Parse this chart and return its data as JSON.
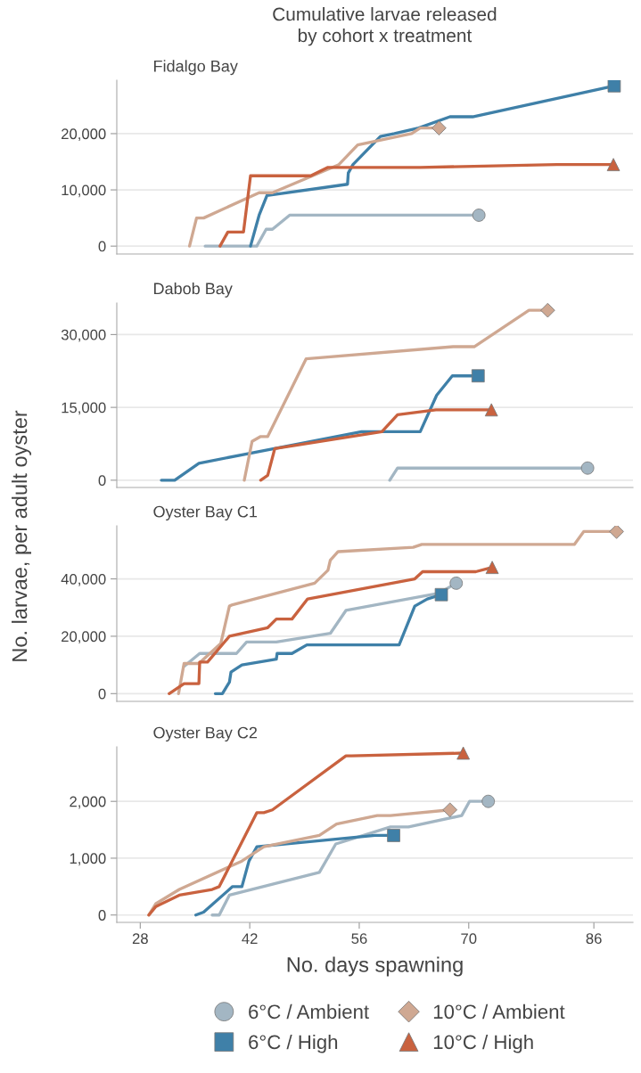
{
  "chart_data": [
    {
      "type": "line",
      "title": "Cumulative larvae released\nby cohort x treatment",
      "subtitle": "Fidalgo Bay",
      "xlim": [
        25,
        91
      ],
      "ylim": [
        -1400,
        29500
      ],
      "yticks": [
        0,
        {
          "value": 10000,
          "label": "10,000"
        },
        {
          "value": 20000,
          "label": "20,000"
        }
      ],
      "grid": "y",
      "tick_labels": "y",
      "legend": "bottom",
      "series": [
        {
          "name": "6°C / Ambient",
          "color": "#a3b6c3",
          "x": [
            36.3,
            42.9,
            44.1,
            44.9,
            47.1,
            71.3
          ],
          "values": [
            0,
            0,
            3000,
            3000,
            5500,
            5500
          ]
        },
        {
          "name": "6°C / High",
          "color": "#3f80a8",
          "x": [
            42.1,
            43.2,
            44.2,
            54.5,
            54.6,
            55.2,
            58.7,
            60.5,
            63.6,
            67.6,
            70.5,
            88.6
          ],
          "values": [
            0,
            5500,
            9000,
            11000,
            13000,
            14500,
            19500,
            20000,
            21000,
            23000,
            23000,
            28500
          ]
        },
        {
          "name": "10°C / Ambient",
          "color": "#cfa892",
          "x": [
            34.3,
            35.2,
            36.1,
            43.2,
            44.9,
            53.4,
            55.8,
            62.7,
            63.8,
            66.2
          ],
          "values": [
            0,
            5000,
            5000,
            9500,
            9500,
            14500,
            18000,
            20000,
            21000,
            21000
          ]
        },
        {
          "name": "10°C / High",
          "color": "#c9623f",
          "x": [
            38.2,
            39.2,
            41.2,
            42.1,
            49.8,
            52.0,
            63.8,
            81.3,
            88.5
          ],
          "values": [
            0,
            2500,
            2500,
            12500,
            12500,
            14000,
            14000,
            14500,
            14500
          ]
        }
      ]
    },
    {
      "type": "line",
      "subtitle": "Dabob Bay",
      "xlim": [
        25,
        91
      ],
      "ylim": [
        -1500,
        36500
      ],
      "yticks": [
        0,
        {
          "value": 15000,
          "label": "15,000"
        },
        {
          "value": 30000,
          "label": "30,000"
        }
      ],
      "grid": "y",
      "tick_labels": "y",
      "legend": "bottom",
      "series": [
        {
          "name": "6°C / Ambient",
          "color": "#a3b6c3",
          "x": [
            59.9,
            60.9,
            85.2
          ],
          "values": [
            0,
            2500,
            2500
          ]
        },
        {
          "name": "6°C / High",
          "color": "#3f80a8",
          "x": [
            30.7,
            32.4,
            35.5,
            56.3,
            63.8,
            65.9,
            67.9,
            71.2
          ],
          "values": [
            0,
            0,
            3500,
            10000,
            10000,
            17500,
            21500,
            21500
          ]
        },
        {
          "name": "10°C / Ambient",
          "color": "#cfa892",
          "x": [
            41.3,
            42.3,
            43.4,
            44.3,
            49.2,
            68.0,
            70.7,
            77.7,
            80.1
          ],
          "values": [
            0,
            8000,
            9000,
            9000,
            25000,
            27500,
            27500,
            35000,
            35000
          ]
        },
        {
          "name": "10°C / High",
          "color": "#c9623f",
          "x": [
            43.4,
            44.3,
            45.2,
            58.9,
            60.9,
            65.8,
            72.9
          ],
          "values": [
            0,
            1000,
            6500,
            10000,
            13500,
            14500,
            14500
          ]
        }
      ]
    },
    {
      "type": "line",
      "subtitle": "Oyster Bay C1",
      "ylabel": "No. larvae, per adult oyster",
      "xlim": [
        25,
        91
      ],
      "ylim": [
        -2700,
        58500
      ],
      "yticks": [
        0,
        {
          "value": 20000,
          "label": "20,000"
        },
        {
          "value": 40000,
          "label": "40,000"
        }
      ],
      "grid": "y",
      "tick_labels": "y",
      "legend": "bottom",
      "series": [
        {
          "name": "6°C / Ambient",
          "color": "#a3b6c3",
          "x": [
            33.6,
            35.6,
            40.3,
            41.6,
            45.4,
            52.3,
            54.3,
            66.2,
            68.4
          ],
          "values": [
            9500,
            14000,
            14000,
            18000,
            18000,
            21000,
            29000,
            35000,
            38500
          ]
        },
        {
          "name": "6°C / High",
          "color": "#3f80a8",
          "x": [
            37.6,
            38.5,
            39.4,
            39.6,
            41.0,
            45.4,
            45.5,
            47.4,
            49.3,
            61.1,
            63.1,
            64.7,
            66.5
          ],
          "values": [
            0,
            0,
            4000,
            7500,
            10000,
            12000,
            14000,
            14000,
            17000,
            17000,
            30500,
            33000,
            34500
          ]
        },
        {
          "name": "10°C / Ambient",
          "color": "#cfa892",
          "x": [
            32.9,
            33.6,
            35.5,
            38.3,
            39.4,
            39.8,
            50.3,
            52.0,
            52.3,
            53.3,
            62.9,
            64.0,
            83.5,
            84.7,
            88.9
          ],
          "values": [
            0,
            10500,
            10500,
            17500,
            30500,
            31000,
            38500,
            43000,
            46500,
            49500,
            51000,
            52000,
            52000,
            56500,
            56500
          ]
        },
        {
          "name": "10°C / High",
          "color": "#c9623f",
          "x": [
            31.7,
            33.6,
            35.5,
            35.6,
            36.6,
            39.4,
            44.3,
            45.4,
            47.4,
            49.4,
            63.1,
            64.1,
            70.9,
            73.0
          ],
          "values": [
            0,
            3500,
            3500,
            11000,
            11000,
            20000,
            23000,
            26000,
            26000,
            33000,
            40000,
            42500,
            42500,
            44000
          ]
        }
      ]
    },
    {
      "type": "line",
      "subtitle": "Oyster Bay C2",
      "xlabel": "No. days spawning",
      "xlim": [
        25,
        91
      ],
      "xticks": [
        28,
        42,
        56,
        70,
        86
      ],
      "ylim": [
        -130,
        2960
      ],
      "yticks": [
        0,
        {
          "value": 1000,
          "label": "1,000"
        },
        {
          "value": 2000,
          "label": "2,000"
        }
      ],
      "grid": "y",
      "legend": "bottom",
      "series": [
        {
          "name": "6°C / Ambient",
          "color": "#a3b6c3",
          "x": [
            37.2,
            38.1,
            39.4,
            50.9,
            53.0,
            60.0,
            62.3,
            69.1,
            70.1,
            72.5
          ],
          "values": [
            0,
            0,
            350,
            750,
            1250,
            1550,
            1550,
            1750,
            2000,
            2000
          ]
        },
        {
          "name": "6°C / High",
          "color": "#3f80a8",
          "x": [
            35.1,
            36.1,
            39.8,
            41.0,
            41.9,
            42.9,
            58.0,
            60.4
          ],
          "values": [
            0,
            50,
            500,
            500,
            950,
            1200,
            1400,
            1400
          ]
        },
        {
          "name": "10°C / Ambient",
          "color": "#cfa892",
          "x": [
            29.1,
            30.0,
            33.0,
            41.0,
            43.8,
            50.9,
            53.1,
            58.3,
            60.0,
            67.6
          ],
          "values": [
            0,
            200,
            450,
            950,
            1200,
            1400,
            1600,
            1750,
            1750,
            1850
          ]
        },
        {
          "name": "10°C / High",
          "color": "#c9623f",
          "x": [
            29.1,
            30.0,
            33.0,
            37.2,
            38.1,
            42.9,
            43.8,
            44.9,
            54.3,
            55.0,
            69.3
          ],
          "values": [
            0,
            150,
            350,
            450,
            500,
            1800,
            1800,
            1850,
            2800,
            2800,
            2850
          ]
        }
      ]
    }
  ]
}
